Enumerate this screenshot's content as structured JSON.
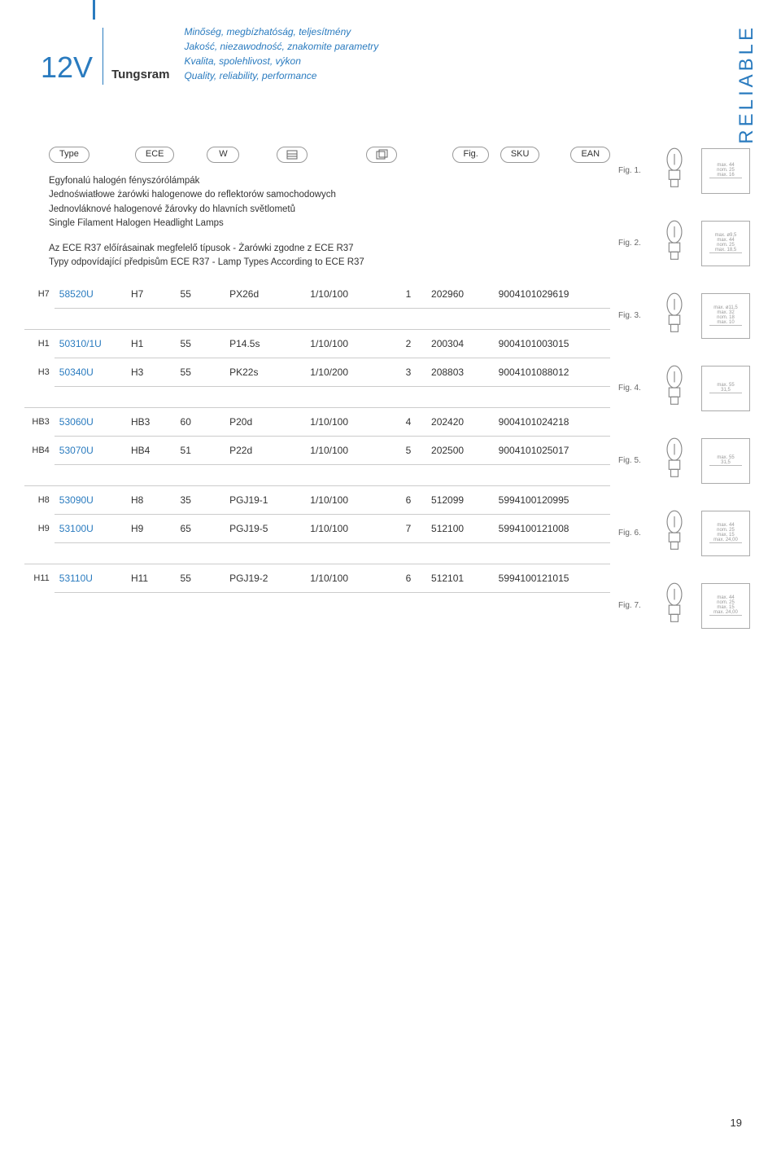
{
  "header": {
    "voltage": "12V",
    "brand": "Tungsram",
    "taglines": [
      "Minőség, megbízhatóság, teljesítmény",
      "Jakość, niezawodność, znakomite parametry",
      "Kvalita, spolehlivost, výkon",
      "Quality, reliability, performance"
    ],
    "sideLabel": "RELIABLE"
  },
  "columnHeaders": [
    "Type",
    "ECE",
    "W",
    "",
    "",
    "Fig.",
    "SKU",
    "EAN"
  ],
  "intro": [
    "Egyfonalú halogén fényszórólámpák",
    "Jednoświatłowe żarówki halogenowe do reflektorów samochodowych",
    "Jednovláknové halogenové žárovky do hlavních světlometů",
    "Single Filament Halogen Headlight Lamps"
  ],
  "intro2": [
    "Az ECE R37 előírásainak megfelelő típusok - Żarówki zgodne z ECE R37",
    "Typy odpovídající předpisům ECE R37 - Lamp Types According to ECE R37"
  ],
  "rows": [
    {
      "label": "H7",
      "type": "58520U",
      "ece": "H7",
      "w": "55",
      "base": "PX26d",
      "pack": "1/10/100",
      "fig": "1",
      "sku": "202960",
      "ean": "9004101029619"
    },
    {
      "label": "H1",
      "type": "50310/1U",
      "ece": "H1",
      "w": "55",
      "base": "P14.5s",
      "pack": "1/10/100",
      "fig": "2",
      "sku": "200304",
      "ean": "9004101003015"
    },
    {
      "label": "H3",
      "type": "50340U",
      "ece": "H3",
      "w": "55",
      "base": "PK22s",
      "pack": "1/10/200",
      "fig": "3",
      "sku": "208803",
      "ean": "9004101088012"
    },
    {
      "label": "HB3",
      "type": "53060U",
      "ece": "HB3",
      "w": "60",
      "base": "P20d",
      "pack": "1/10/100",
      "fig": "4",
      "sku": "202420",
      "ean": "9004101024218"
    },
    {
      "label": "HB4",
      "type": "53070U",
      "ece": "HB4",
      "w": "51",
      "base": "P22d",
      "pack": "1/10/100",
      "fig": "5",
      "sku": "202500",
      "ean": "9004101025017"
    },
    {
      "label": "H8",
      "type": "53090U",
      "ece": "H8",
      "w": "35",
      "base": "PGJ19-1",
      "pack": "1/10/100",
      "fig": "6",
      "sku": "512099",
      "ean": "5994100120995"
    },
    {
      "label": "H9",
      "type": "53100U",
      "ece": "H9",
      "w": "65",
      "base": "PGJ19-5",
      "pack": "1/10/100",
      "fig": "7",
      "sku": "512100",
      "ean": "5994100121008"
    },
    {
      "label": "H11",
      "type": "53110U",
      "ece": "H11",
      "w": "55",
      "base": "PGJ19-2",
      "pack": "1/10/100",
      "fig": "6",
      "sku": "512101",
      "ean": "5994100121015"
    }
  ],
  "gapsAfter": [
    0,
    2,
    4,
    6
  ],
  "figures": [
    {
      "label": "Fig. 1.",
      "dims": [
        "max. 44",
        "nom. 25",
        "max. 16"
      ]
    },
    {
      "label": "Fig. 2.",
      "dims": [
        "max. ø9,5",
        "max. 44",
        "nom. 25",
        "max. 18,5"
      ]
    },
    {
      "label": "Fig. 3.",
      "dims": [
        "max. ø11,5",
        "max. 32",
        "nom. 18",
        "max. 10"
      ]
    },
    {
      "label": "Fig. 4.",
      "dims": [
        "max. 55",
        "31,5"
      ]
    },
    {
      "label": "Fig. 5.",
      "dims": [
        "max. 55",
        "31,5"
      ]
    },
    {
      "label": "Fig. 6.",
      "dims": [
        "max. 44",
        "nom. 25",
        "max. 15",
        "max. 24,00"
      ]
    },
    {
      "label": "Fig. 7.",
      "dims": [
        "max. 44",
        "nom. 25",
        "max. 15",
        "max. 24,00"
      ]
    }
  ],
  "pageNumber": "19",
  "colors": {
    "accent": "#2a7bbf",
    "text": "#333333",
    "border": "#cccccc"
  }
}
